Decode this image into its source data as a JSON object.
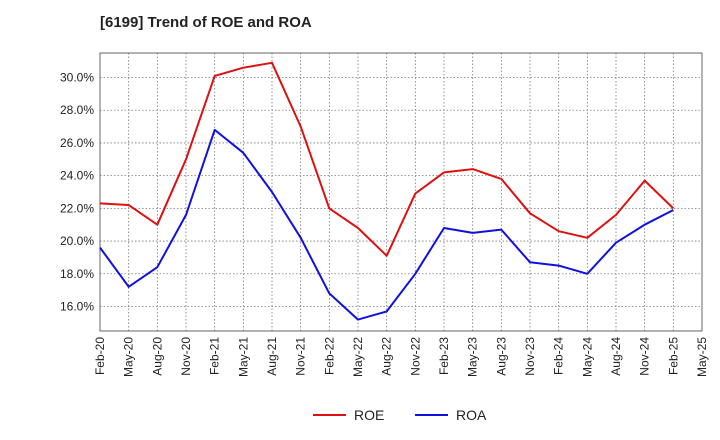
{
  "chart_data": {
    "type": "line",
    "title": "[6199]  Trend of ROE and ROA",
    "xlabel": "",
    "ylabel": "",
    "x": [
      "Feb-20",
      "May-20",
      "Aug-20",
      "Nov-20",
      "Feb-21",
      "May-21",
      "Aug-21",
      "Nov-21",
      "Feb-22",
      "May-22",
      "Aug-22",
      "Nov-22",
      "Feb-23",
      "May-23",
      "Aug-23",
      "Nov-23",
      "Feb-24",
      "May-24",
      "Aug-24",
      "Nov-24",
      "Feb-25",
      "May-25"
    ],
    "series": [
      {
        "name": "ROE",
        "color": "#dd1111",
        "values": [
          22.3,
          22.2,
          21.0,
          25.0,
          30.1,
          30.6,
          30.9,
          27.0,
          22.0,
          20.8,
          19.1,
          22.9,
          24.2,
          24.4,
          23.8,
          21.7,
          20.6,
          20.2,
          21.6,
          23.7,
          22.0,
          null
        ]
      },
      {
        "name": "ROA",
        "color": "#1111dd",
        "values": [
          19.6,
          17.2,
          18.4,
          21.6,
          26.8,
          25.4,
          23.0,
          20.2,
          16.8,
          15.2,
          15.7,
          18.0,
          20.8,
          20.5,
          20.7,
          18.7,
          18.5,
          18.0,
          19.9,
          21.0,
          21.9,
          null
        ]
      }
    ],
    "yticks": [
      "16.0%",
      "18.0%",
      "20.0%",
      "22.0%",
      "24.0%",
      "26.0%",
      "28.0%",
      "30.0%"
    ],
    "ylim": [
      14.5,
      31.5
    ],
    "grid": true,
    "legend_position": "bottom-center"
  }
}
